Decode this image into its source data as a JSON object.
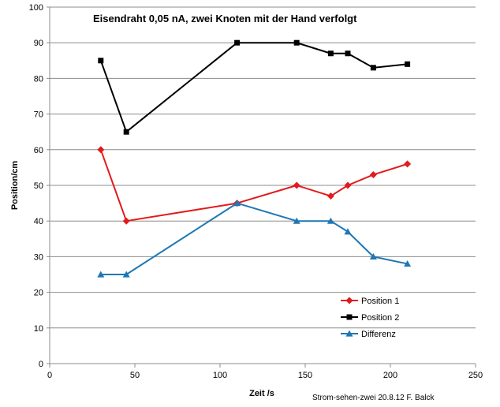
{
  "chart_data": {
    "type": "line",
    "title": "Eisendraht 0,05  nA, zwei Knoten mit der Hand verfolgt",
    "xlabel": "Zeit /s",
    "ylabel": "Position/cm",
    "xlim": [
      0,
      250
    ],
    "ylim": [
      0,
      100
    ],
    "xticks": [
      0,
      50,
      100,
      150,
      200,
      250
    ],
    "yticks": [
      0,
      10,
      20,
      30,
      40,
      50,
      60,
      70,
      80,
      90,
      100
    ],
    "grid": "horizontal",
    "legend_position": "bottom-right",
    "credit": "Strom-sehen-zwei 20.8.12  F. Balck",
    "series": [
      {
        "name": "Position 1",
        "color": "#e31a1c",
        "marker": "diamond",
        "x": [
          30,
          45,
          110,
          145,
          165,
          175,
          190,
          210
        ],
        "y": [
          60,
          40,
          45,
          50,
          47,
          50,
          53,
          56
        ]
      },
      {
        "name": "Position 2",
        "color": "#000000",
        "marker": "square",
        "x": [
          30,
          45,
          110,
          145,
          165,
          175,
          190,
          210
        ],
        "y": [
          85,
          65,
          90,
          90,
          87,
          87,
          83,
          84
        ]
      },
      {
        "name": "Differenz",
        "color": "#1f77b4",
        "marker": "triangle",
        "x": [
          30,
          45,
          110,
          145,
          165,
          175,
          190,
          210
        ],
        "y": [
          25,
          25,
          45,
          40,
          40,
          37,
          30,
          28
        ]
      }
    ]
  }
}
